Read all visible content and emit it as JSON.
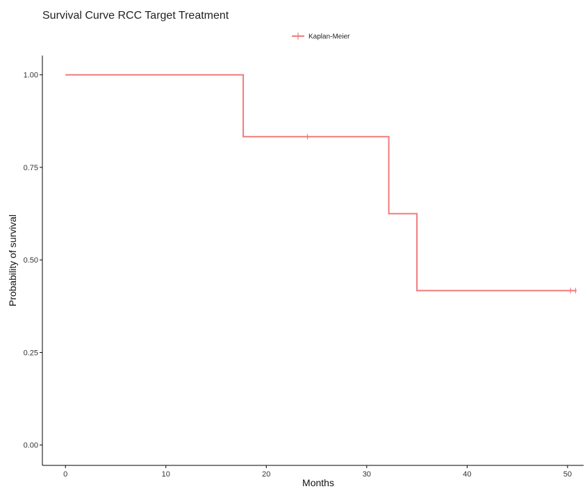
{
  "chart_data": {
    "type": "line",
    "title": "Survival Curve RCC Target Treatment",
    "xlabel": "Months",
    "ylabel": "Probability of survival",
    "xlim": [
      -2.3,
      51.6
    ],
    "ylim": [
      -0.055,
      1.052
    ],
    "xticks": [
      0,
      10,
      20,
      30,
      40,
      50
    ],
    "yticks": [
      0,
      0.25,
      0.5,
      0.75,
      1
    ],
    "xtick_labels": [
      "0",
      "10",
      "20",
      "30",
      "40",
      "50"
    ],
    "ytick_labels": [
      "0.00",
      "0.25",
      "0.50",
      "0.75",
      "1.00"
    ],
    "legend": {
      "position": "top",
      "entries": [
        "Kaplan-Meier"
      ]
    },
    "grid": false,
    "series": [
      {
        "name": "Kaplan-Meier",
        "color": "#f07a7a",
        "step_x": [
          0,
          17.7,
          17.7,
          32.2,
          32.2,
          35.0,
          35.0,
          50.9
        ],
        "step_y": [
          1.0,
          1.0,
          0.833,
          0.833,
          0.625,
          0.625,
          0.417,
          0.417
        ],
        "censored": [
          {
            "x": 24.1,
            "y": 0.833
          },
          {
            "x": 50.3,
            "y": 0.417
          },
          {
            "x": 50.8,
            "y": 0.417
          }
        ]
      }
    ]
  }
}
